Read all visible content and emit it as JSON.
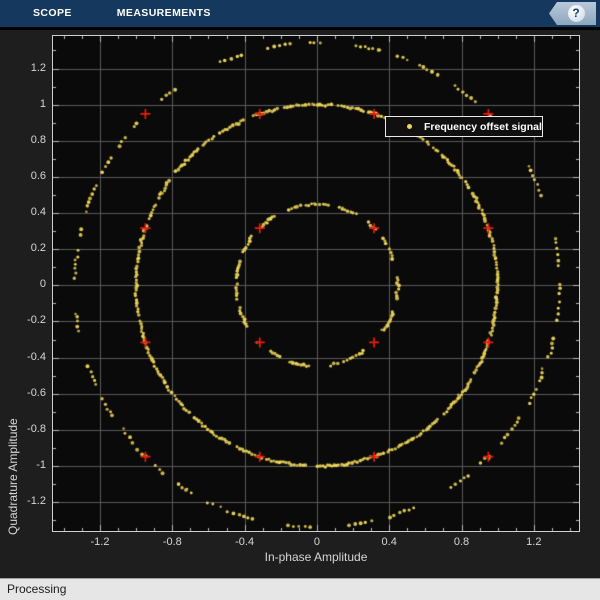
{
  "toolbar": {
    "tabs": [
      {
        "label": "SCOPE"
      },
      {
        "label": "MEASUREMENTS"
      }
    ],
    "help_glyph": "?"
  },
  "status": {
    "text": "Processing"
  },
  "colors": {
    "toolbar_bg": "#15395E",
    "toolbar_text": "#FFFFFF",
    "figure_bg": "#1E1E1E",
    "plot_bg": "#0A0A0A",
    "grid": "#5A5A5A",
    "axis_border": "#CFCFCF",
    "tick": "#BDBDBD",
    "tick_label": "#D6D6D6",
    "signal_yellow": "#EFD75A",
    "reference_red": "#EE1C0C",
    "legend_bg": "#101010",
    "legend_border": "#E9E9E9",
    "statusbar_bg": "#E6E6E6"
  },
  "chart_data": {
    "type": "scatter",
    "title": "",
    "xlabel": "In-phase Amplitude",
    "ylabel": "Quadrature Amplitude",
    "xlim": [
      -1.46,
      1.45
    ],
    "ylim": [
      -1.36,
      1.38
    ],
    "grid": true,
    "x_major_ticks": [
      -1.2,
      -0.8,
      -0.4,
      0,
      0.4,
      0.8,
      1.2
    ],
    "y_major_ticks": [
      -1.2,
      -1,
      -0.8,
      -0.6,
      -0.4,
      -0.2,
      0,
      0.2,
      0.4,
      0.6,
      0.8,
      1,
      1.2
    ],
    "minor_tick_step": 0.1,
    "legend": {
      "position": "northeast",
      "entries": [
        {
          "label": "Frequency offset signal",
          "marker": "dot",
          "color": "#EFD75A"
        }
      ]
    },
    "series": [
      {
        "name": "Frequency offset signal",
        "marker": "dot",
        "color": "#EFD75A",
        "rings": [
          {
            "radius": 0.4472,
            "coverage": 0.55,
            "dash": [
              0.08,
              0.3
            ],
            "step": [
              0.026,
              0.05
            ],
            "stray": 8
          },
          {
            "radius": 1.0,
            "coverage": 0.8,
            "dash": [
              0.03,
              0.15
            ],
            "step": [
              0.011,
              0.02
            ],
            "stray": 10
          },
          {
            "radius": 1.3416,
            "coverage": 0.48,
            "dash": [
              0.03,
              0.12
            ],
            "step": [
              0.015,
              0.028
            ],
            "stray": 12
          }
        ]
      },
      {
        "name": "Reference constellation",
        "marker": "+",
        "color": "#EE1C0C",
        "points": [
          [
            0.3162,
            0.3162
          ],
          [
            0.3162,
            -0.3162
          ],
          [
            -0.3162,
            0.3162
          ],
          [
            -0.3162,
            -0.3162
          ],
          [
            0.3162,
            0.9487
          ],
          [
            0.3162,
            -0.9487
          ],
          [
            -0.3162,
            0.9487
          ],
          [
            -0.3162,
            -0.9487
          ],
          [
            0.9487,
            0.3162
          ],
          [
            0.9487,
            -0.3162
          ],
          [
            -0.9487,
            0.3162
          ],
          [
            -0.9487,
            -0.3162
          ],
          [
            0.9487,
            0.9487
          ],
          [
            0.9487,
            -0.9487
          ],
          [
            -0.9487,
            0.9487
          ],
          [
            -0.9487,
            -0.9487
          ]
        ]
      }
    ]
  }
}
